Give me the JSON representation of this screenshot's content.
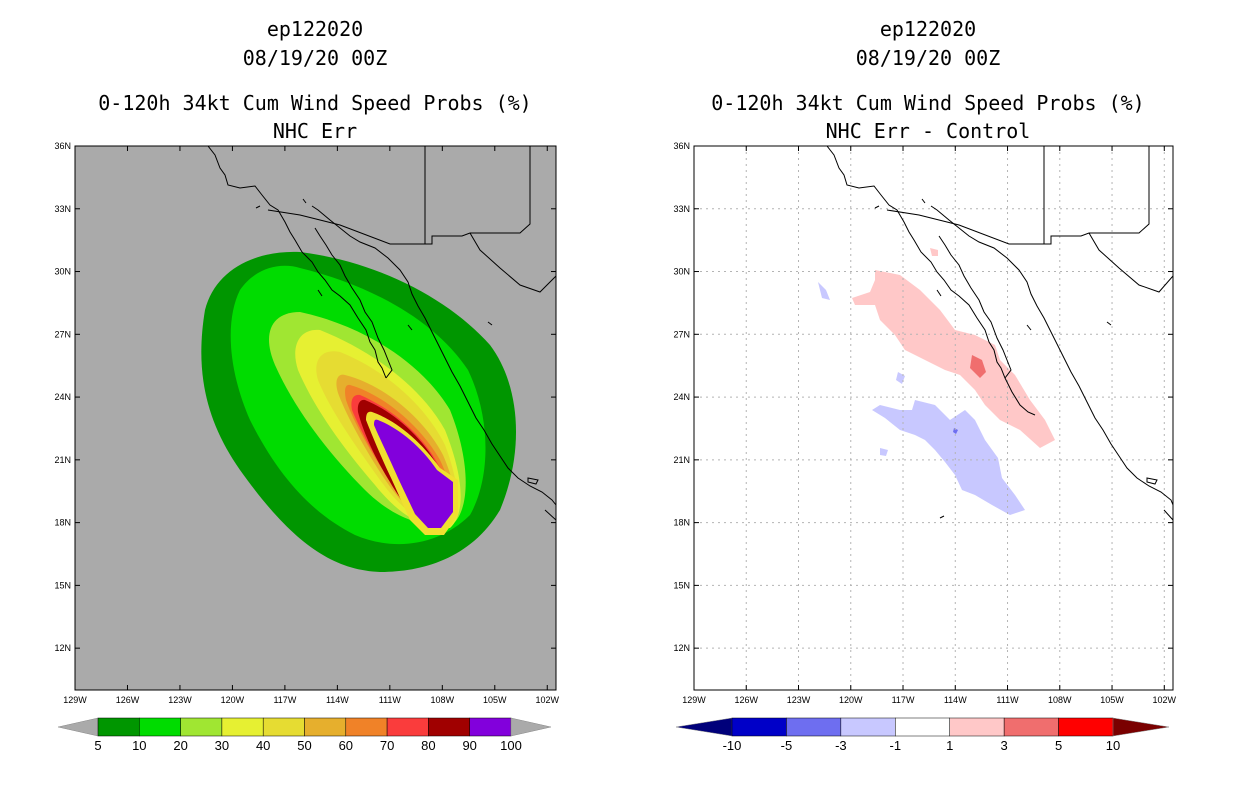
{
  "panels": [
    {
      "id": "left",
      "title_lines": [
        "ep122020",
        "08/19/20 00Z",
        "0-120h 34kt Cum Wind Speed Probs (%)",
        "NHC Err"
      ],
      "background": "#aaaaaa",
      "colorbar": {
        "labels": [
          "5",
          "10",
          "20",
          "30",
          "40",
          "50",
          "60",
          "70",
          "80",
          "90",
          "100"
        ],
        "colors": [
          "#009600",
          "#00dc00",
          "#a0e632",
          "#e6f032",
          "#e6dc32",
          "#e6af2d",
          "#f08228",
          "#fa3c3c",
          "#a00000",
          "#8200dc"
        ],
        "end_low": "#aaaaaa",
        "end_high": "#aaaaaa"
      }
    },
    {
      "id": "right",
      "title_lines": [
        "ep122020",
        "08/19/20 00Z",
        "0-120h 34kt Cum Wind Speed Probs (%)",
        "NHC Err - Control"
      ],
      "background": "#ffffff",
      "colorbar": {
        "labels": [
          "-10",
          "-5",
          "-3",
          "-1",
          "1",
          "3",
          "5",
          "10"
        ],
        "colors": [
          "#0000c8",
          "#6e6ef0",
          "#c8c8ff",
          "#ffffff",
          "#ffc8c8",
          "#f06e6e",
          "#ff0000"
        ],
        "end_low": "#00007a",
        "end_high": "#7a0000"
      }
    }
  ],
  "axes": {
    "lat_labels": [
      "36N",
      "33N",
      "30N",
      "27N",
      "24N",
      "21N",
      "18N",
      "15N",
      "12N"
    ],
    "lat_values": [
      36,
      33,
      30,
      27,
      24,
      21,
      18,
      15,
      12
    ],
    "lon_labels": [
      "129W",
      "126W",
      "123W",
      "120W",
      "117W",
      "114W",
      "111W",
      "108W",
      "105W",
      "102W"
    ],
    "lon_values": [
      -129,
      -126,
      -123,
      -120,
      -117,
      -114,
      -111,
      -108,
      -105,
      -102
    ],
    "lat_range": [
      10,
      36
    ],
    "lon_range": [
      -129,
      -101.5
    ]
  },
  "colors": {
    "frame": "#000000",
    "grid": "#b4b4b4",
    "coast": "#000000"
  }
}
